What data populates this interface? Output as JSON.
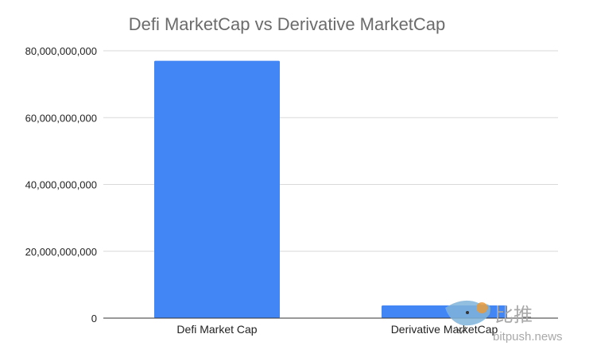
{
  "chart_data": {
    "type": "bar",
    "title": "Defi MarketCap vs Derivative MarketCap",
    "xlabel": "",
    "ylabel": "",
    "categories": [
      "Defi Market Cap",
      "Derivative MarketCap"
    ],
    "series": [
      {
        "values": [
          77000000000,
          3800000000
        ],
        "color": "#4285f4"
      }
    ],
    "ylim": [
      0,
      80000000000
    ],
    "yticks": [
      0,
      20000000000,
      40000000000,
      60000000000,
      80000000000
    ],
    "ytick_labels": [
      "0",
      "20,000,000,000",
      "40,000,000,000",
      "60,000,000,000",
      "80,000,000,000"
    ],
    "grid": true,
    "legend": "none"
  },
  "watermark": {
    "cn_text": "比推",
    "en_text": "bitpush.news",
    "icon": "bird-bitcoin-logo-icon"
  }
}
